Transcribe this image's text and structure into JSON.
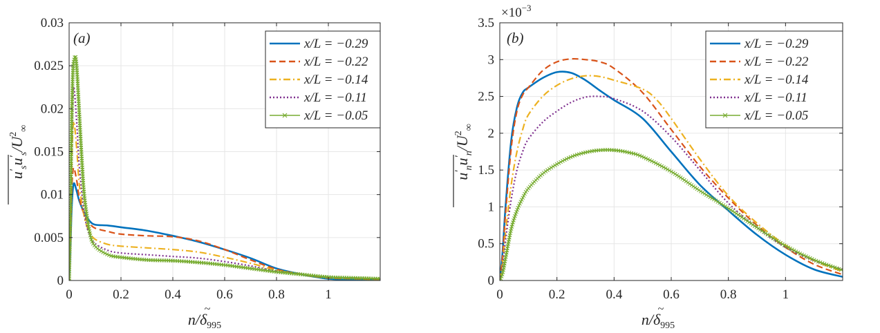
{
  "chart_data": [
    {
      "type": "line",
      "panel_label": "(a)",
      "xlabel": "n/δ̃995",
      "ylabel": "u's u's / U∞²",
      "xlim": [
        0,
        1.2
      ],
      "ylim": [
        0,
        0.03
      ],
      "xticks": [
        0,
        0.2,
        0.4,
        0.6,
        0.8,
        1
      ],
      "xtick_labels": [
        "0",
        "0.2",
        "0.4",
        "0.6",
        "0.8",
        "1"
      ],
      "yticks": [
        0,
        0.005,
        0.01,
        0.015,
        0.02,
        0.025,
        0.03
      ],
      "ytick_labels": [
        "0",
        "0.005",
        "0.01",
        "0.015",
        "0.02",
        "0.025",
        "0.03"
      ],
      "grid": true,
      "legend_position": "top-right",
      "series": [
        {
          "name": "x/L = −0.29",
          "color": "#0072BD",
          "style": "solid",
          "marker": "none",
          "x": [
            0,
            0.005,
            0.01,
            0.015,
            0.02,
            0.03,
            0.04,
            0.06,
            0.08,
            0.1,
            0.15,
            0.2,
            0.3,
            0.4,
            0.5,
            0.6,
            0.7,
            0.8,
            0.9,
            1.0,
            1.1,
            1.2
          ],
          "y": [
            0,
            0.004,
            0.0085,
            0.0108,
            0.0113,
            0.0103,
            0.0092,
            0.0078,
            0.0069,
            0.0065,
            0.0064,
            0.0062,
            0.0058,
            0.0052,
            0.0045,
            0.0036,
            0.0026,
            0.0014,
            0.0007,
            0.0002,
            0.0001,
            0.0001
          ]
        },
        {
          "name": "x/L = −0.22",
          "color": "#D95319",
          "style": "dashed",
          "marker": "none",
          "x": [
            0,
            0.005,
            0.01,
            0.015,
            0.02,
            0.03,
            0.04,
            0.06,
            0.08,
            0.1,
            0.15,
            0.2,
            0.3,
            0.4,
            0.5,
            0.6,
            0.7,
            0.8,
            0.9,
            1.0,
            1.1,
            1.2
          ],
          "y": [
            0,
            0.005,
            0.0105,
            0.0128,
            0.013,
            0.0115,
            0.0095,
            0.0075,
            0.0066,
            0.0061,
            0.0057,
            0.0054,
            0.0052,
            0.0051,
            0.0046,
            0.0036,
            0.0024,
            0.0013,
            0.0007,
            0.0003,
            0.0002,
            0.0001
          ]
        },
        {
          "name": "x/L = −0.14",
          "color": "#EDB120",
          "style": "dashdot",
          "marker": "none",
          "x": [
            0,
            0.005,
            0.01,
            0.015,
            0.02,
            0.03,
            0.04,
            0.06,
            0.08,
            0.1,
            0.15,
            0.2,
            0.3,
            0.4,
            0.5,
            0.6,
            0.7,
            0.8,
            0.9,
            1.0,
            1.1,
            1.2
          ],
          "y": [
            0,
            0.006,
            0.014,
            0.0178,
            0.0183,
            0.015,
            0.011,
            0.0072,
            0.0056,
            0.0048,
            0.0042,
            0.004,
            0.0038,
            0.0036,
            0.0033,
            0.0027,
            0.002,
            0.0012,
            0.0007,
            0.0004,
            0.0003,
            0.0002
          ]
        },
        {
          "name": "x/L = −0.11",
          "color": "#7E2F8E",
          "style": "dotted",
          "marker": "none",
          "x": [
            0,
            0.005,
            0.01,
            0.015,
            0.02,
            0.03,
            0.04,
            0.06,
            0.08,
            0.1,
            0.15,
            0.2,
            0.3,
            0.4,
            0.5,
            0.6,
            0.7,
            0.8,
            0.9,
            1.0,
            1.1,
            1.2
          ],
          "y": [
            0,
            0.007,
            0.017,
            0.0215,
            0.0222,
            0.018,
            0.013,
            0.0075,
            0.0052,
            0.0043,
            0.0035,
            0.0032,
            0.003,
            0.0028,
            0.0026,
            0.0022,
            0.0017,
            0.0011,
            0.0007,
            0.0004,
            0.0003,
            0.0002
          ]
        },
        {
          "name": "x/L = −0.05",
          "color": "#77AC30",
          "style": "solid",
          "marker": "x",
          "x": [
            0,
            0.005,
            0.01,
            0.015,
            0.02,
            0.025,
            0.03,
            0.04,
            0.05,
            0.06,
            0.08,
            0.1,
            0.15,
            0.2,
            0.3,
            0.4,
            0.5,
            0.6,
            0.7,
            0.8,
            0.9,
            1.0,
            1.1,
            1.2
          ],
          "y": [
            0,
            0.008,
            0.019,
            0.0245,
            0.0258,
            0.026,
            0.0245,
            0.019,
            0.0135,
            0.0095,
            0.0055,
            0.004,
            0.003,
            0.0027,
            0.0024,
            0.0023,
            0.0021,
            0.0018,
            0.0014,
            0.001,
            0.0007,
            0.0004,
            0.0003,
            0.0002
          ]
        }
      ],
      "legend_entries": [
        "x/L = −0.29",
        "x/L = −0.22",
        "x/L = −0.14",
        "x/L = −0.11",
        "x/L = −0.05"
      ]
    },
    {
      "type": "line",
      "panel_label": "(b)",
      "xlabel": "n/δ̃995",
      "ylabel": "u'n u'n / U∞²",
      "exponent_label": "×10−3",
      "xlim": [
        0,
        1.2
      ],
      "ylim": [
        0,
        3.5
      ],
      "xticks": [
        0,
        0.2,
        0.4,
        0.6,
        0.8,
        1
      ],
      "xtick_labels": [
        "0",
        "0.2",
        "0.4",
        "0.6",
        "0.8",
        "1"
      ],
      "yticks": [
        0,
        0.5,
        1,
        1.5,
        2,
        2.5,
        3,
        3.5
      ],
      "ytick_labels": [
        "0",
        "0.5",
        "1",
        "1.5",
        "2",
        "2.5",
        "3",
        "3.5"
      ],
      "grid": true,
      "legend_position": "top-right",
      "series": [
        {
          "name": "x/L = −0.29",
          "color": "#0072BD",
          "style": "solid",
          "marker": "none",
          "x": [
            0,
            0.01,
            0.02,
            0.04,
            0.06,
            0.08,
            0.1,
            0.15,
            0.2,
            0.25,
            0.3,
            0.35,
            0.4,
            0.5,
            0.6,
            0.7,
            0.8,
            0.9,
            1.0,
            1.1,
            1.2
          ],
          "y": [
            0,
            0.4,
            1.0,
            1.9,
            2.35,
            2.55,
            2.62,
            2.75,
            2.83,
            2.82,
            2.72,
            2.58,
            2.45,
            2.2,
            1.75,
            1.3,
            0.95,
            0.62,
            0.35,
            0.15,
            0.05
          ]
        },
        {
          "name": "x/L = −0.22",
          "color": "#D95319",
          "style": "dashed",
          "marker": "none",
          "x": [
            0,
            0.01,
            0.02,
            0.04,
            0.06,
            0.08,
            0.1,
            0.15,
            0.2,
            0.25,
            0.3,
            0.35,
            0.4,
            0.5,
            0.6,
            0.7,
            0.8,
            0.9,
            1.0,
            1.1,
            1.2
          ],
          "y": [
            0,
            0.35,
            0.9,
            1.8,
            2.3,
            2.52,
            2.62,
            2.85,
            2.97,
            3.01,
            3.0,
            2.97,
            2.88,
            2.55,
            2.05,
            1.55,
            1.12,
            0.75,
            0.45,
            0.22,
            0.08
          ]
        },
        {
          "name": "x/L = −0.14",
          "color": "#EDB120",
          "style": "dashdot",
          "marker": "none",
          "x": [
            0,
            0.01,
            0.02,
            0.04,
            0.06,
            0.08,
            0.1,
            0.15,
            0.2,
            0.25,
            0.3,
            0.35,
            0.4,
            0.5,
            0.55,
            0.6,
            0.7,
            0.8,
            0.9,
            1.0,
            1.1,
            1.2
          ],
          "y": [
            0,
            0.25,
            0.65,
            1.3,
            1.75,
            2.05,
            2.25,
            2.5,
            2.65,
            2.74,
            2.78,
            2.77,
            2.72,
            2.6,
            2.45,
            2.2,
            1.65,
            1.15,
            0.78,
            0.48,
            0.27,
            0.12
          ]
        },
        {
          "name": "x/L = −0.11",
          "color": "#7E2F8E",
          "style": "dotted",
          "marker": "none",
          "x": [
            0,
            0.01,
            0.02,
            0.04,
            0.06,
            0.08,
            0.1,
            0.15,
            0.2,
            0.25,
            0.3,
            0.35,
            0.4,
            0.5,
            0.6,
            0.7,
            0.8,
            0.9,
            1.0,
            1.1,
            1.2
          ],
          "y": [
            0,
            0.2,
            0.55,
            1.1,
            1.5,
            1.75,
            1.92,
            2.15,
            2.3,
            2.42,
            2.49,
            2.5,
            2.47,
            2.3,
            1.95,
            1.5,
            1.05,
            0.72,
            0.45,
            0.27,
            0.15
          ]
        },
        {
          "name": "x/L = −0.05",
          "color": "#77AC30",
          "style": "solid",
          "marker": "x",
          "x": [
            0,
            0.01,
            0.02,
            0.04,
            0.06,
            0.08,
            0.1,
            0.15,
            0.2,
            0.25,
            0.3,
            0.35,
            0.4,
            0.45,
            0.5,
            0.6,
            0.7,
            0.8,
            0.9,
            1.0,
            1.1,
            1.2
          ],
          "y": [
            0,
            0.1,
            0.3,
            0.7,
            0.95,
            1.12,
            1.25,
            1.45,
            1.58,
            1.68,
            1.74,
            1.77,
            1.77,
            1.74,
            1.68,
            1.48,
            1.22,
            0.98,
            0.72,
            0.47,
            0.28,
            0.14
          ]
        }
      ],
      "legend_entries": [
        "x/L = −0.29",
        "x/L = −0.22",
        "x/L = −0.14",
        "x/L = −0.11",
        "x/L = −0.05"
      ]
    }
  ]
}
